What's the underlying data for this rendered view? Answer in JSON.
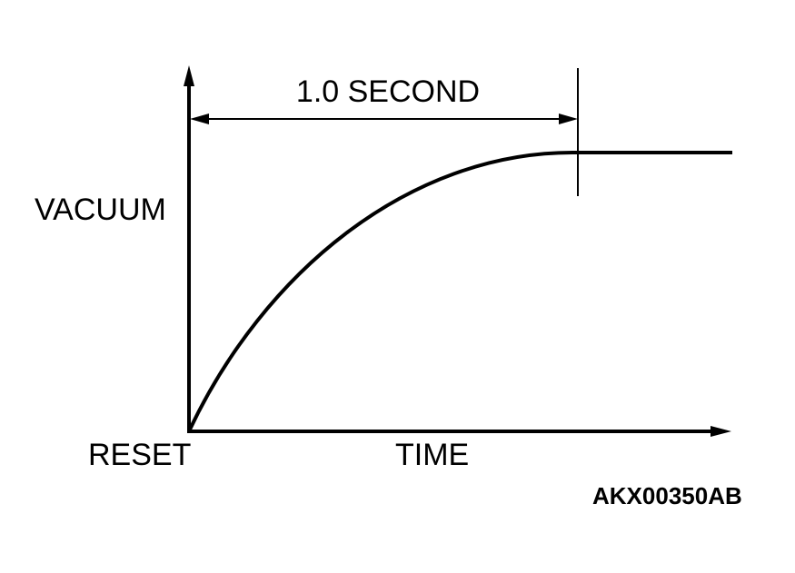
{
  "labels": {
    "duration": "1.0 SECOND",
    "y_axis": "VACUUM",
    "origin": "RESET",
    "x_axis": "TIME",
    "figure_id": "AKX00350AB"
  }
}
